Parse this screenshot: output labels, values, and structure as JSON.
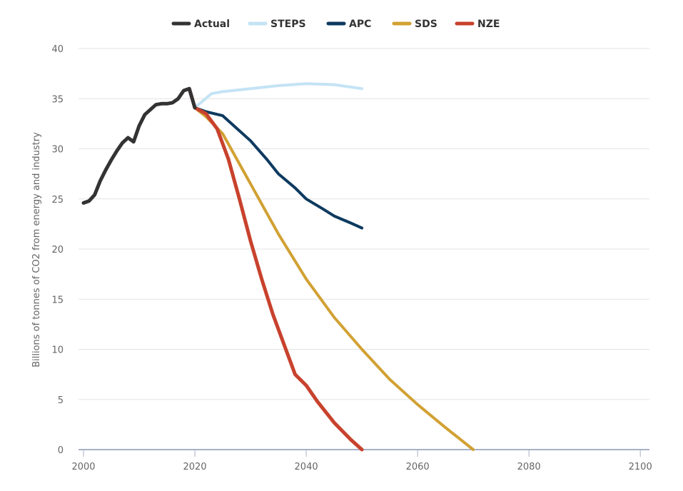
{
  "chart_data": {
    "type": "line",
    "title": "",
    "xlabel": "",
    "ylabel": "Billions of tonnes of CO2 from energy and industry",
    "xlim": [
      2000,
      2101
    ],
    "ylim": [
      0,
      40
    ],
    "x_ticks": [
      "2000",
      "2020",
      "2040",
      "2060",
      "2080",
      "2100"
    ],
    "y_ticks": [
      "0",
      "5",
      "10",
      "15",
      "20",
      "25",
      "30",
      "35",
      "40"
    ],
    "grid": "horizontal",
    "legend_position": "top-center",
    "series": [
      {
        "name": "Actual",
        "color": "#333333",
        "points": [
          [
            2000,
            24.6
          ],
          [
            2001,
            24.8
          ],
          [
            2002,
            25.4
          ],
          [
            2003,
            26.8
          ],
          [
            2004,
            27.9
          ],
          [
            2005,
            28.9
          ],
          [
            2006,
            29.8
          ],
          [
            2007,
            30.6
          ],
          [
            2008,
            31.1
          ],
          [
            2009,
            30.7
          ],
          [
            2010,
            32.3
          ],
          [
            2011,
            33.4
          ],
          [
            2012,
            33.9
          ],
          [
            2013,
            34.4
          ],
          [
            2014,
            34.5
          ],
          [
            2015,
            34.5
          ],
          [
            2016,
            34.6
          ],
          [
            2017,
            35.0
          ],
          [
            2018,
            35.8
          ],
          [
            2019,
            36.0
          ],
          [
            2020,
            34.1
          ]
        ]
      },
      {
        "name": "STEPS",
        "color": "#c4e3f5",
        "points": [
          [
            2020,
            34.1
          ],
          [
            2023,
            35.5
          ],
          [
            2025,
            35.7
          ],
          [
            2030,
            36.0
          ],
          [
            2035,
            36.3
          ],
          [
            2040,
            36.5
          ],
          [
            2045,
            36.4
          ],
          [
            2050,
            36.0
          ]
        ]
      },
      {
        "name": "APC",
        "color": "#0e3a5f",
        "points": [
          [
            2020,
            34.1
          ],
          [
            2022,
            33.7
          ],
          [
            2025,
            33.3
          ],
          [
            2027,
            32.3
          ],
          [
            2030,
            30.8
          ],
          [
            2033,
            28.9
          ],
          [
            2035,
            27.5
          ],
          [
            2038,
            26.1
          ],
          [
            2040,
            25.0
          ],
          [
            2043,
            24.0
          ],
          [
            2045,
            23.3
          ],
          [
            2048,
            22.6
          ],
          [
            2050,
            22.1
          ]
        ]
      },
      {
        "name": "SDS",
        "color": "#d1a133",
        "points": [
          [
            2020,
            34.1
          ],
          [
            2022,
            33.2
          ],
          [
            2025,
            31.5
          ],
          [
            2030,
            26.5
          ],
          [
            2035,
            21.5
          ],
          [
            2040,
            17.0
          ],
          [
            2045,
            13.2
          ],
          [
            2050,
            10.0
          ],
          [
            2055,
            7.0
          ],
          [
            2060,
            4.5
          ],
          [
            2065,
            2.2
          ],
          [
            2070,
            0
          ]
        ]
      },
      {
        "name": "NZE",
        "color": "#c8422d",
        "points": [
          [
            2019,
            36.0
          ],
          [
            2020,
            34.1
          ],
          [
            2022,
            33.5
          ],
          [
            2024,
            32.0
          ],
          [
            2026,
            29.0
          ],
          [
            2028,
            25.0
          ],
          [
            2030,
            20.8
          ],
          [
            2032,
            17.0
          ],
          [
            2034,
            13.5
          ],
          [
            2036,
            10.5
          ],
          [
            2038,
            7.5
          ],
          [
            2040,
            6.4
          ],
          [
            2042,
            4.8
          ],
          [
            2045,
            2.7
          ],
          [
            2048,
            1.0
          ],
          [
            2050,
            0
          ]
        ]
      }
    ]
  }
}
